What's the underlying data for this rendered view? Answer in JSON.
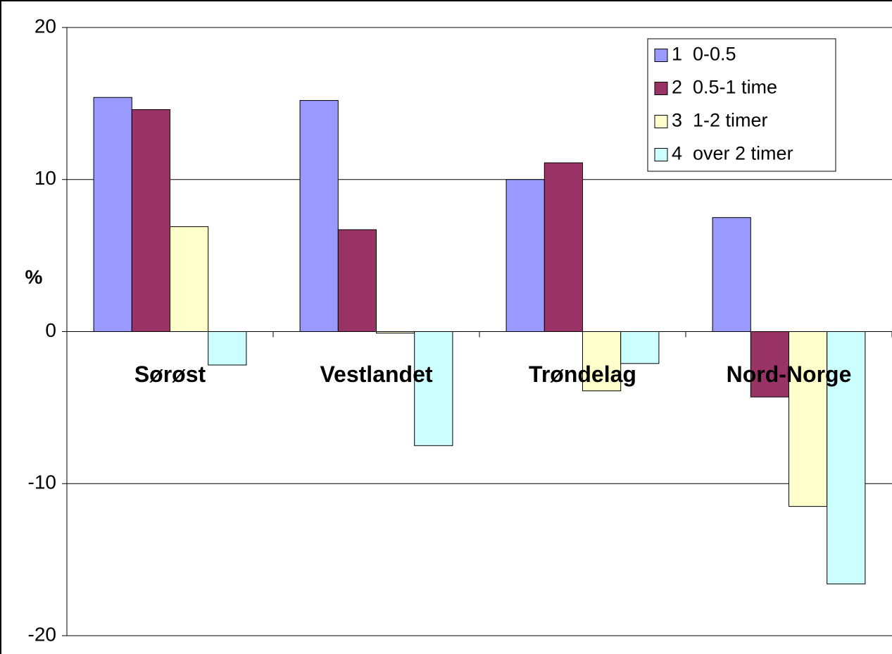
{
  "chart_data": {
    "type": "bar",
    "ylabel": "%",
    "categories": [
      "Sørøst",
      "Vestlandet",
      "Trøndelag",
      "Nord-Norge"
    ],
    "series": [
      {
        "name": "1  0-0.5",
        "color": "#9999ff",
        "values": [
          15.4,
          15.2,
          10,
          7.5
        ]
      },
      {
        "name": "2  0.5-1 time",
        "color": "#993366",
        "values": [
          14.6,
          6.7,
          11.1,
          -4.3
        ]
      },
      {
        "name": "3  1-2 timer",
        "color": "#ffffcc",
        "values": [
          6.9,
          -0.1,
          -3.9,
          -11.5
        ]
      },
      {
        "name": "4  over 2 timer",
        "color": "#ccffff",
        "values": [
          -2.2,
          -7.5,
          -2.1,
          -16.6
        ]
      }
    ],
    "ylim": [
      -20,
      20
    ],
    "yticks": [
      -20,
      -10,
      0,
      10,
      20
    ],
    "grid": true,
    "legend": "top-right"
  }
}
